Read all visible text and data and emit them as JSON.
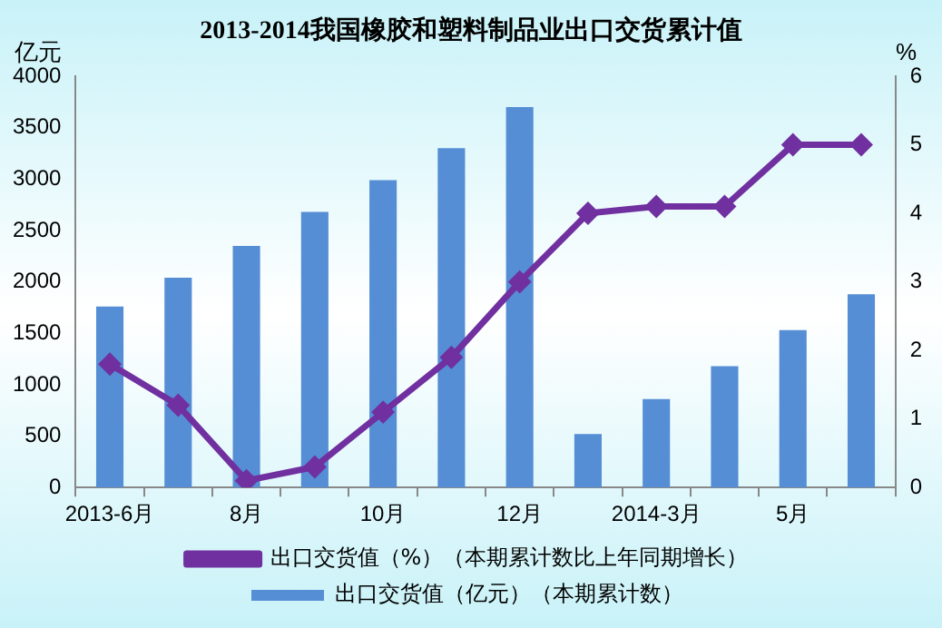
{
  "chart_data": {
    "type": "bar",
    "title": "2013-2014我国橡胶和塑料制品业出口交货累计值",
    "ylabel": "亿元",
    "y2label": "%",
    "categories": [
      "2013-6月",
      null,
      "8月",
      null,
      "10月",
      null,
      "12月",
      null,
      "2014-3月",
      null,
      "5月",
      null
    ],
    "series": [
      {
        "name": "出口交货值（亿元）（本期累计数）",
        "color": "#558ed5",
        "values": [
          1760,
          2040,
          2350,
          2680,
          2990,
          3300,
          3700,
          520,
          860,
          1180,
          1530,
          1880
        ]
      },
      {
        "name": "出口交货值（%）（本期累计数比上年同期增长）",
        "type": "line",
        "axis": "y2",
        "color": "#7030a0",
        "marker": "diamond",
        "values": [
          1.8,
          1.2,
          0.1,
          0.3,
          1.1,
          1.9,
          3.0,
          4.0,
          4.1,
          4.1,
          5.0,
          5.0
        ]
      }
    ],
    "ylim": [
      0,
      4000
    ],
    "yticks": [
      0,
      500,
      1000,
      1500,
      2000,
      2500,
      3000,
      3500,
      4000
    ],
    "y2lim": [
      0,
      6
    ],
    "y2ticks": [
      0,
      1,
      2,
      3,
      4,
      5,
      6
    ],
    "grid": false,
    "legend": "bottom"
  }
}
